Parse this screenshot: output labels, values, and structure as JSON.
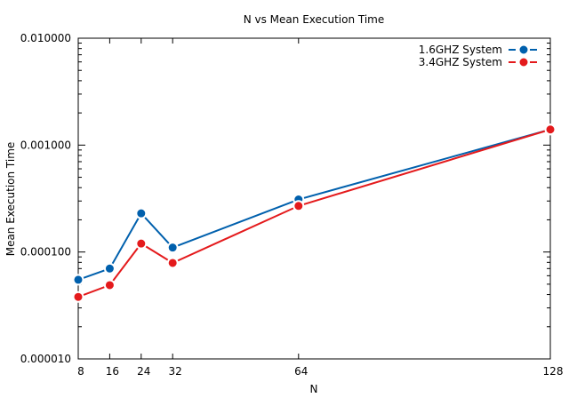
{
  "chart_data": {
    "type": "line",
    "title": "N vs Mean Execution Time",
    "xlabel": "N",
    "ylabel": "Mean Execution Time",
    "x": [
      8,
      16,
      24,
      32,
      64,
      128
    ],
    "x_ticks": [
      "8",
      "16",
      "24",
      "32",
      "64",
      "128"
    ],
    "xlim": [
      8,
      128
    ],
    "y_scale": "log",
    "ylim": [
      1e-05,
      0.01
    ],
    "y_ticks": [
      "0.000010",
      "0.000100",
      "0.001000",
      "0.010000"
    ],
    "legend_position": "top-right",
    "series": [
      {
        "name": "1.6GHZ System",
        "color": "#0060ad",
        "values": [
          5.5e-05,
          7e-05,
          0.00023,
          0.00011,
          0.00031,
          0.0014
        ]
      },
      {
        "name": "3.4GHZ System",
        "color": "#e41a1c",
        "values": [
          3.8e-05,
          4.9e-05,
          0.00012,
          7.9e-05,
          0.00027,
          0.0014
        ]
      }
    ]
  }
}
